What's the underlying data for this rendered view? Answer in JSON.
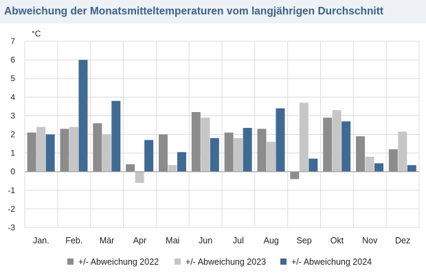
{
  "chart_data": {
    "type": "bar",
    "title": "Abweichung der Monatsmitteltemperaturen vom langjährigen Durchschnitt",
    "ylabel": "°C",
    "xlabel": "",
    "ylim": [
      -3,
      7
    ],
    "yticks": [
      "7",
      "6",
      "5",
      "4",
      "3",
      "2",
      "1",
      "0",
      "-1",
      "-2",
      "-3"
    ],
    "grid": true,
    "legend_position": "bottom",
    "categories": [
      "Jan.",
      "Feb.",
      "Mär",
      "Apr",
      "Mai",
      "Jun",
      "Jul",
      "Aug",
      "Sep",
      "Okt",
      "Nov",
      "Dez"
    ],
    "series": [
      {
        "name": "+/- Abweichung 2022",
        "color": "#8c8c8c",
        "values": [
          2.1,
          2.3,
          2.6,
          0.4,
          2.0,
          3.2,
          2.1,
          2.3,
          -0.4,
          2.9,
          1.9,
          1.2
        ]
      },
      {
        "name": "+/- Abweichung 2023",
        "color": "#c6c6c6",
        "values": [
          2.4,
          2.4,
          2.0,
          -0.6,
          0.35,
          2.9,
          1.8,
          1.6,
          3.7,
          3.3,
          0.8,
          2.15
        ]
      },
      {
        "name": "+/- Abweichung 2024",
        "color": "#3f6a94",
        "values": [
          2.0,
          6.0,
          3.8,
          1.7,
          1.05,
          1.8,
          2.35,
          3.4,
          0.7,
          2.7,
          0.45,
          0.35
        ]
      }
    ]
  }
}
